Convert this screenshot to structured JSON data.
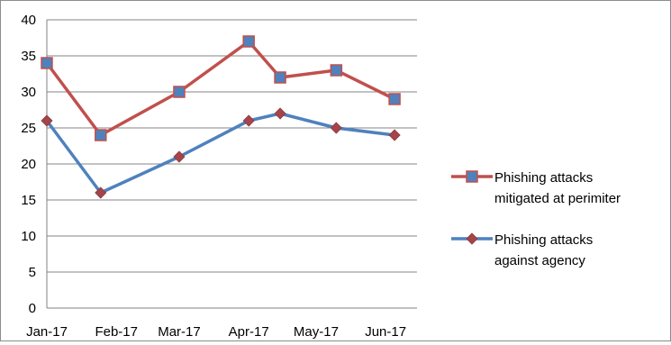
{
  "chart_data": {
    "type": "line",
    "x": [
      "Jan-17",
      "Jan-17",
      "Mar-17",
      "Apr-17",
      "Apr-17",
      "May-17",
      "Jun-17"
    ],
    "x_dates": [
      "2017-01-01",
      "2017-01-25",
      "2017-03-01",
      "2017-04-01",
      "2017-04-15",
      "2017-05-10",
      "2017-06-05"
    ],
    "x_ticks": [
      "Jan-17",
      "Feb-17",
      "Mar-17",
      "Apr-17",
      "May-17",
      "Jun-17"
    ],
    "x_tick_dates": [
      "2017-01-01",
      "2017-02-01",
      "2017-03-01",
      "2017-04-01",
      "2017-05-01",
      "2017-06-01"
    ],
    "xlim": [
      "2017-01-01",
      "2017-06-15"
    ],
    "ylim": [
      0,
      40
    ],
    "yticks": [
      0,
      5,
      10,
      15,
      20,
      25,
      30,
      35,
      40
    ],
    "grid": "horizontal",
    "legend_position": "right",
    "series": [
      {
        "name": "Phishing attacks mitigated at perimiter",
        "legend_lines": [
          "Phishing attacks",
          "mitigated at perimiter"
        ],
        "values": [
          34,
          24,
          30,
          37,
          32,
          33,
          29
        ],
        "color": "#c0504d",
        "marker": "square",
        "marker_color": "#4f81bd"
      },
      {
        "name": "Phishing attacks against agency",
        "legend_lines": [
          "Phishing attacks",
          "against agency"
        ],
        "values": [
          26,
          16,
          21,
          26,
          27,
          25,
          24
        ],
        "color": "#4f81bd",
        "marker": "diamond",
        "marker_color": "#a3454a"
      }
    ]
  }
}
